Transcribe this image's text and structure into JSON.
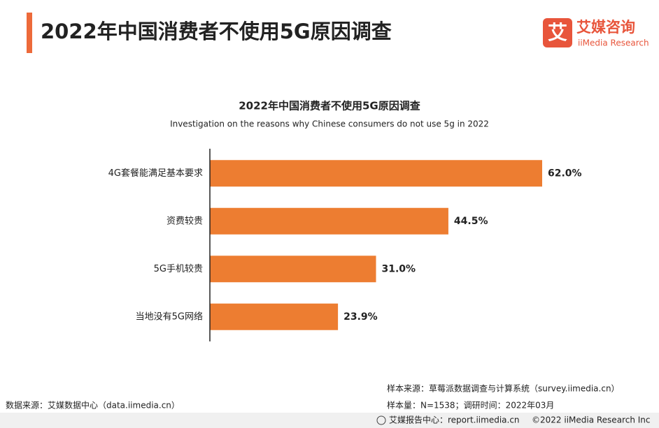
{
  "header": {
    "title": "2022年中国消费者不使用5G原因调查",
    "logo_icon": "艾",
    "logo_name": "艾媒咨询",
    "logo_sub": "iiMedia Research"
  },
  "chart_data": {
    "type": "bar",
    "orientation": "horizontal",
    "title": "2022年中国消费者不使用5G原因调查",
    "subtitle": "Investigation on the reasons why Chinese consumers do not use 5g in 2022",
    "categories": [
      "4G套餐能满足基本要求",
      "资费较贵",
      "5G手机较贵",
      "当地没有5G网络"
    ],
    "values": [
      62.0,
      44.5,
      31.0,
      23.9
    ],
    "value_labels": [
      "62.0%",
      "44.5%",
      "31.0%",
      "23.9%"
    ],
    "color": "#ed7d31"
  },
  "footer": {
    "data_source": "数据来源：艾媒数据中心（data.iimedia.cn）",
    "sample_source": "样本来源：草莓派数据调查与计算系统（survey.iimedia.cn）",
    "sample_size": "样本量：N=1538；调研时间：2022年03月",
    "report_center": "艾媒报告中心：report.iimedia.cn",
    "copyright": "©2022  iiMedia Research  Inc"
  }
}
